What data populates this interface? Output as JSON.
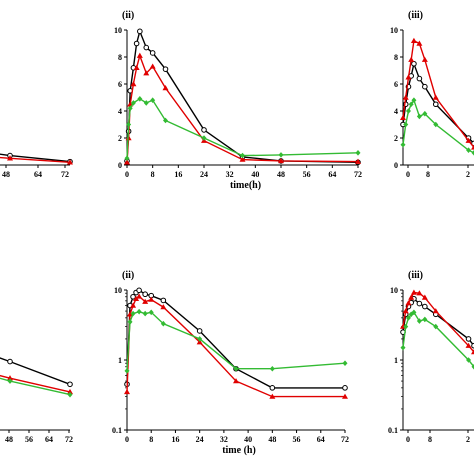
{
  "chart_data": [
    {
      "type": "line",
      "panel_label": "",
      "x_ticks": [
        "48",
        "64",
        "72"
      ],
      "xlim": [
        40,
        72
      ],
      "y_scale": "linear",
      "ylim": [
        0,
        10
      ],
      "y_ticks": [],
      "xlabel": "",
      "series": [
        {
          "color": "#000000",
          "marker": "open-circle",
          "x": [
            40,
            48,
            72
          ],
          "y": [
            0.9,
            0.7,
            0.25
          ]
        },
        {
          "color": "#e00000",
          "marker": "triangle",
          "x": [
            40,
            48,
            72
          ],
          "y": [
            0.6,
            0.5,
            0.2
          ]
        }
      ]
    },
    {
      "type": "line",
      "panel_label": "(ii)",
      "x_ticks": [
        "0",
        "8",
        "16",
        "24",
        "32",
        "40",
        "48",
        "56",
        "64",
        "72"
      ],
      "xlim": [
        0,
        72
      ],
      "y_scale": "linear",
      "ylim": [
        0,
        10
      ],
      "y_ticks": [
        "0",
        "2",
        "4",
        "6",
        "8",
        "10"
      ],
      "xlabel": "time(h)",
      "series": [
        {
          "color": "#000000",
          "marker": "open-circle",
          "x": [
            0,
            0.5,
            1,
            2,
            3,
            4,
            6,
            8,
            12,
            24,
            36,
            48,
            72
          ],
          "y": [
            0.3,
            2.5,
            5.5,
            7.2,
            9.0,
            9.9,
            8.7,
            8.3,
            7.1,
            2.6,
            0.6,
            0.3,
            0.2
          ]
        },
        {
          "color": "#e00000",
          "marker": "triangle",
          "x": [
            0,
            0.5,
            1,
            2,
            3,
            4,
            6,
            8,
            12,
            24,
            36,
            48,
            72
          ],
          "y": [
            0.2,
            2.0,
            4.5,
            6.0,
            7.2,
            8.1,
            6.8,
            7.3,
            5.7,
            1.8,
            0.4,
            0.3,
            0.25
          ]
        },
        {
          "color": "#33bb33",
          "marker": "diamond",
          "x": [
            0,
            0.5,
            1,
            2,
            4,
            6,
            8,
            12,
            24,
            36,
            48,
            72
          ],
          "y": [
            0.5,
            3.0,
            4.2,
            4.6,
            4.9,
            4.6,
            4.8,
            3.3,
            2.0,
            0.7,
            0.75,
            0.9
          ]
        }
      ]
    },
    {
      "type": "line",
      "panel_label": "(iii)",
      "x_ticks": [
        "0",
        "8",
        "2"
      ],
      "xlim": [
        0,
        26
      ],
      "y_scale": "linear",
      "ylim": [
        0,
        10
      ],
      "y_ticks": [
        "0",
        "2",
        "4",
        "6",
        "8",
        "10"
      ],
      "xlabel": "",
      "series": [
        {
          "color": "#000000",
          "marker": "open-circle",
          "x": [
            0,
            1,
            2,
            3,
            4,
            6,
            8,
            12,
            24,
            26
          ],
          "y": [
            3.0,
            4.5,
            5.8,
            6.6,
            7.5,
            6.4,
            5.8,
            4.5,
            2.0,
            1.6
          ]
        },
        {
          "color": "#e00000",
          "marker": "triangle",
          "x": [
            0,
            1,
            2,
            3,
            4,
            6,
            8,
            12,
            24,
            26
          ],
          "y": [
            3.5,
            5.0,
            6.5,
            7.8,
            9.2,
            9.0,
            7.8,
            5.0,
            1.8,
            1.3
          ]
        },
        {
          "color": "#33bb33",
          "marker": "diamond",
          "x": [
            0,
            1,
            2,
            3,
            4,
            6,
            8,
            12,
            24,
            26
          ],
          "y": [
            1.5,
            3.0,
            4.0,
            4.5,
            4.8,
            3.6,
            3.8,
            3.0,
            1.1,
            0.9
          ]
        }
      ]
    },
    {
      "type": "line",
      "panel_label": "",
      "x_ticks": [
        "48",
        "56",
        "64",
        "72"
      ],
      "xlim": [
        40,
        72
      ],
      "y_scale": "log",
      "ylim": [
        0.1,
        10
      ],
      "y_ticks": [],
      "xlabel": "",
      "series": [
        {
          "color": "#000000",
          "marker": "open-circle",
          "x": [
            40,
            48,
            72
          ],
          "y": [
            1.2,
            0.95,
            0.45
          ]
        },
        {
          "color": "#e00000",
          "marker": "triangle",
          "x": [
            40,
            48,
            72
          ],
          "y": [
            0.65,
            0.55,
            0.35
          ]
        },
        {
          "color": "#33bb33",
          "marker": "diamond",
          "x": [
            40,
            48,
            72
          ],
          "y": [
            0.6,
            0.5,
            0.32
          ]
        }
      ]
    },
    {
      "type": "line",
      "panel_label": "(ii)",
      "x_ticks": [
        "0",
        "8",
        "16",
        "24",
        "32",
        "40",
        "48",
        "56",
        "64",
        "72"
      ],
      "xlim": [
        0,
        72
      ],
      "y_scale": "log",
      "ylim": [
        0.1,
        10
      ],
      "y_ticks": [
        "0.1",
        "1",
        "10"
      ],
      "xlabel": "time (h)",
      "series": [
        {
          "color": "#000000",
          "marker": "open-circle",
          "x": [
            0,
            1,
            2,
            3,
            4,
            6,
            8,
            12,
            24,
            36,
            48,
            72
          ],
          "y": [
            0.45,
            6.0,
            8.0,
            9.2,
            9.9,
            8.7,
            8.3,
            7.1,
            2.6,
            0.75,
            0.4,
            0.4
          ]
        },
        {
          "color": "#e00000",
          "marker": "triangle",
          "x": [
            0,
            1,
            2,
            3,
            4,
            6,
            8,
            12,
            24,
            36,
            48,
            72
          ],
          "y": [
            0.35,
            4.5,
            6.0,
            7.5,
            8.1,
            6.8,
            7.3,
            5.7,
            1.8,
            0.5,
            0.3,
            0.3
          ]
        },
        {
          "color": "#33bb33",
          "marker": "diamond",
          "x": [
            0,
            1,
            2,
            4,
            6,
            8,
            12,
            24,
            36,
            48,
            72
          ],
          "y": [
            0.7,
            3.5,
            4.6,
            4.9,
            4.6,
            4.8,
            3.3,
            2.0,
            0.75,
            0.75,
            0.9
          ]
        }
      ]
    },
    {
      "type": "line",
      "panel_label": "(iii)",
      "x_ticks": [
        "0",
        "8",
        "2"
      ],
      "xlim": [
        0,
        26
      ],
      "y_scale": "log",
      "ylim": [
        0.1,
        10
      ],
      "y_ticks": [
        "0.1",
        "1",
        "10"
      ],
      "xlabel": "",
      "series": [
        {
          "color": "#000000",
          "marker": "open-circle",
          "x": [
            0,
            1,
            2,
            3,
            4,
            6,
            8,
            12,
            24,
            26
          ],
          "y": [
            2.5,
            4.5,
            5.8,
            6.6,
            7.5,
            6.4,
            5.8,
            4.5,
            2.0,
            1.6
          ]
        },
        {
          "color": "#e00000",
          "marker": "triangle",
          "x": [
            0,
            1,
            2,
            3,
            4,
            6,
            8,
            12,
            24,
            26
          ],
          "y": [
            3.0,
            5.0,
            6.5,
            7.8,
            9.2,
            9.0,
            7.8,
            5.0,
            1.6,
            1.3
          ]
        },
        {
          "color": "#33bb33",
          "marker": "diamond",
          "x": [
            0,
            1,
            2,
            3,
            4,
            6,
            8,
            12,
            24,
            26
          ],
          "y": [
            1.5,
            3.0,
            4.0,
            4.5,
            4.8,
            3.6,
            3.8,
            3.0,
            1.0,
            0.8
          ]
        }
      ]
    }
  ]
}
